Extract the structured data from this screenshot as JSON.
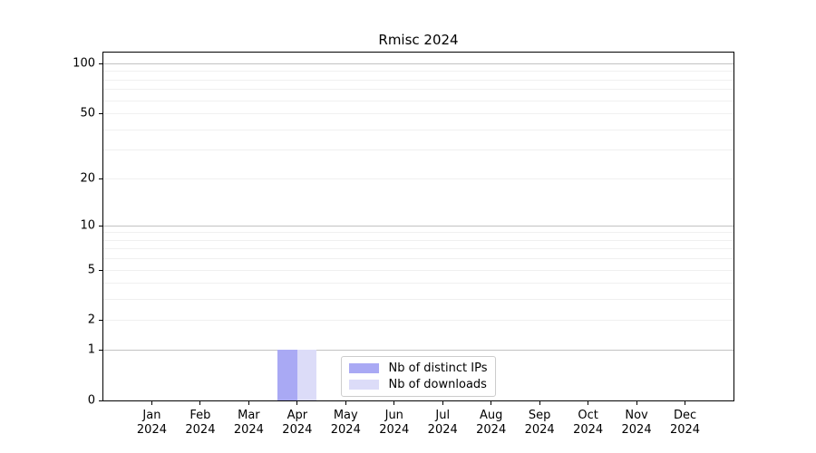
{
  "chart_data": {
    "type": "bar",
    "title": "Rmisc 2024",
    "categories": [
      "Jan",
      "Feb",
      "Mar",
      "Apr",
      "May",
      "Jun",
      "Jul",
      "Aug",
      "Sep",
      "Oct",
      "Nov",
      "Dec"
    ],
    "x_tick_year": "2024",
    "series": [
      {
        "name": "Nb of distinct IPs",
        "color": "#a9a9f4",
        "values": [
          0,
          0,
          0,
          1,
          0,
          0,
          0,
          0,
          0,
          0,
          0,
          0
        ]
      },
      {
        "name": "Nb of downloads",
        "color": "#dcdcf8",
        "values": [
          0,
          0,
          0,
          1,
          0,
          0,
          0,
          0,
          0,
          0,
          0,
          0
        ]
      }
    ],
    "y_axis": {
      "scale": "log1p",
      "tick_labels": [
        0,
        1,
        2,
        5,
        10,
        20,
        50,
        100
      ],
      "major_gridlines": [
        1,
        10,
        100
      ],
      "minor_gridlines": [
        2,
        3,
        4,
        5,
        6,
        7,
        8,
        9,
        20,
        30,
        40,
        50,
        60,
        70,
        80,
        90
      ],
      "ymax_display": 100
    },
    "legend": {
      "position": "lower-center"
    },
    "colors": {
      "bar_distinct_ips": "#a9a9f4",
      "bar_downloads": "#dcdcf8",
      "major_grid": "#c2c2c2",
      "minor_grid": "#f0f0f0",
      "axis_spine": "#000000",
      "legend_border": "#cccccc",
      "text": "#000000",
      "background": "#ffffff"
    }
  }
}
